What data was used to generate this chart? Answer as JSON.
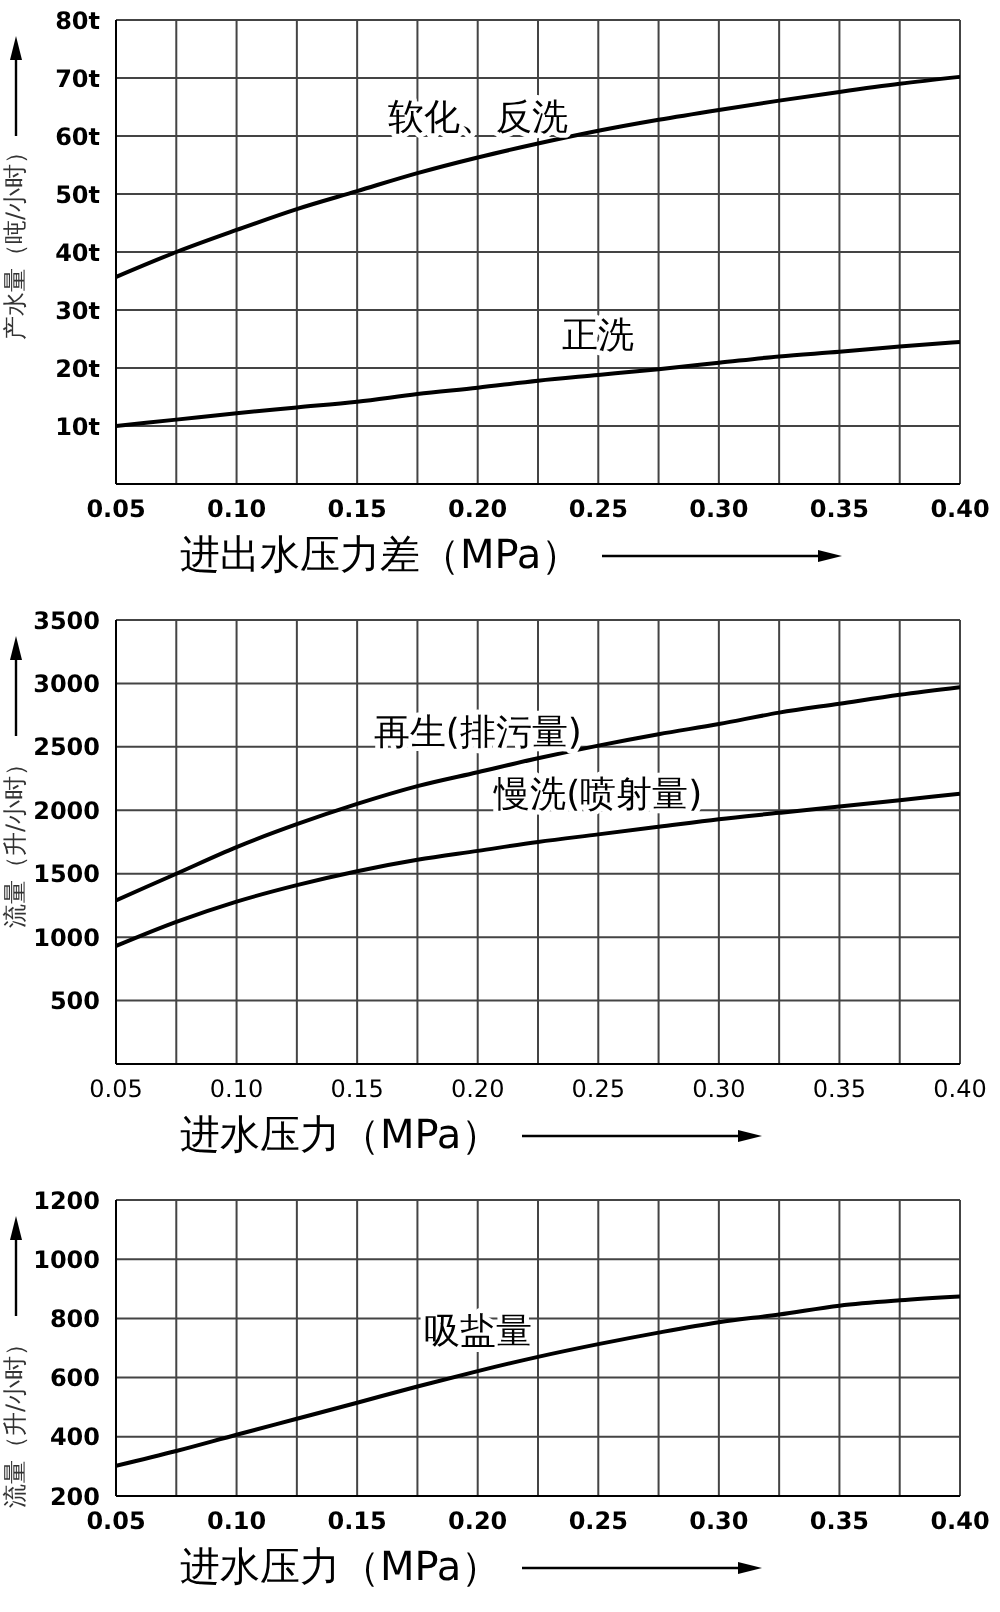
{
  "chart_data": [
    {
      "type": "line",
      "xlabel": "进出水压力差（MPa）",
      "ylabel": "产水量（吨/小时）",
      "x": [
        0.05,
        0.075,
        0.1,
        0.125,
        0.15,
        0.175,
        0.2,
        0.225,
        0.25,
        0.275,
        0.3,
        0.325,
        0.35,
        0.375,
        0.4
      ],
      "series": [
        {
          "name": "软化、反洗",
          "color": "#000000",
          "values": [
            35.7,
            40,
            43.8,
            47.4,
            50.5,
            53.6,
            56.3,
            58.7,
            60.9,
            62.8,
            64.5,
            66.1,
            67.6,
            69,
            70.2
          ]
        },
        {
          "name": "正洗",
          "color": "#000000",
          "values": [
            10,
            11.1,
            12.2,
            13.2,
            14.2,
            15.5,
            16.6,
            17.8,
            18.8,
            19.8,
            20.9,
            22,
            22.8,
            23.7,
            24.5
          ]
        }
      ],
      "xlim": [
        0.05,
        0.4
      ],
      "xticks": [
        0.05,
        {
          "value": 0.075,
          "label": null
        },
        {
          "value": 0.1,
          "label": "0.10"
        },
        {
          "value": 0.125,
          "label": null
        },
        0.15,
        {
          "value": 0.175,
          "label": null
        },
        {
          "value": 0.2,
          "label": "0.20"
        },
        {
          "value": 0.225,
          "label": null
        },
        0.25,
        {
          "value": 0.275,
          "label": null
        },
        {
          "value": 0.3,
          "label": "0.30"
        },
        {
          "value": 0.325,
          "label": null
        },
        0.35,
        {
          "value": 0.375,
          "label": null
        },
        {
          "value": 0.4,
          "label": "0.40"
        }
      ],
      "ylim": [
        0,
        80
      ],
      "yticks": [
        {
          "value": 0,
          "label": null
        },
        {
          "value": 10,
          "label": "10t"
        },
        {
          "value": 20,
          "label": "20t"
        },
        {
          "value": 30,
          "label": "30t"
        },
        {
          "value": 40,
          "label": "40t"
        },
        {
          "value": 50,
          "label": "50t"
        },
        {
          "value": 60,
          "label": "60t"
        },
        {
          "value": 70,
          "label": "70t"
        },
        {
          "value": 80,
          "label": "80t"
        }
      ],
      "grid": true,
      "legend": false,
      "marker": "none",
      "line_style": "solid"
    },
    {
      "type": "line",
      "xlabel": "进水压力（MPa）",
      "ylabel": "流量（升/小时）",
      "x": [
        0.05,
        0.075,
        0.1,
        0.125,
        0.15,
        0.175,
        0.2,
        0.225,
        0.25,
        0.275,
        0.3,
        0.325,
        0.35,
        0.375,
        0.4
      ],
      "series": [
        {
          "name": "再生(排污量)",
          "color": "#000000",
          "values": [
            1290,
            1500,
            1710,
            1890,
            2050,
            2190,
            2300,
            2410,
            2510,
            2600,
            2680,
            2770,
            2840,
            2910,
            2970
          ]
        },
        {
          "name": "慢洗(喷射量)",
          "color": "#000000",
          "values": [
            930,
            1120,
            1280,
            1410,
            1520,
            1610,
            1680,
            1750,
            1810,
            1870,
            1930,
            1980,
            2030,
            2080,
            2130
          ]
        }
      ],
      "xlim": [
        0.05,
        0.4
      ],
      "xticks": [
        0.05,
        {
          "value": 0.075,
          "label": null
        },
        {
          "value": 0.1,
          "label": "0.10"
        },
        {
          "value": 0.125,
          "label": null
        },
        0.15,
        {
          "value": 0.175,
          "label": null
        },
        {
          "value": 0.2,
          "label": "0.20"
        },
        {
          "value": 0.225,
          "label": null
        },
        0.25,
        {
          "value": 0.275,
          "label": null
        },
        {
          "value": 0.3,
          "label": "0.30"
        },
        {
          "value": 0.325,
          "label": null
        },
        0.35,
        {
          "value": 0.375,
          "label": null
        },
        {
          "value": 0.4,
          "label": "0.40"
        }
      ],
      "ylim": [
        0,
        3500
      ],
      "yticks": [
        {
          "value": 0,
          "label": null
        },
        500,
        1000,
        1500,
        2000,
        2500,
        3000,
        3500
      ],
      "grid": true,
      "legend": false,
      "marker": "none",
      "line_style": "solid"
    },
    {
      "type": "line",
      "xlabel": "进水压力（MPa）",
      "ylabel": "流量（升/小时）",
      "x": [
        0.05,
        0.075,
        0.1,
        0.125,
        0.15,
        0.175,
        0.2,
        0.225,
        0.25,
        0.275,
        0.3,
        0.325,
        0.35,
        0.375,
        0.4
      ],
      "series": [
        {
          "name": "吸盐量",
          "color": "#000000",
          "values": [
            302,
            352,
            407,
            461,
            515,
            570,
            622,
            670,
            713,
            752,
            787,
            813,
            843,
            861,
            874
          ]
        }
      ],
      "xlim": [
        0.05,
        0.4
      ],
      "xticks": [
        0.05,
        {
          "value": 0.075,
          "label": null
        },
        {
          "value": 0.1,
          "label": "0.10"
        },
        {
          "value": 0.125,
          "label": null
        },
        0.15,
        {
          "value": 0.175,
          "label": null
        },
        {
          "value": 0.2,
          "label": "0.20"
        },
        {
          "value": 0.225,
          "label": null
        },
        0.25,
        {
          "value": 0.275,
          "label": null
        },
        {
          "value": 0.3,
          "label": "0.30"
        },
        {
          "value": 0.325,
          "label": null
        },
        0.35,
        {
          "value": 0.375,
          "label": null
        },
        {
          "value": 0.4,
          "label": "0.40"
        }
      ],
      "ylim": [
        200,
        1200
      ],
      "yticks": [
        200,
        400,
        600,
        800,
        1000,
        1200
      ],
      "grid": true,
      "legend": false,
      "marker": "none",
      "line_style": "solid"
    }
  ]
}
